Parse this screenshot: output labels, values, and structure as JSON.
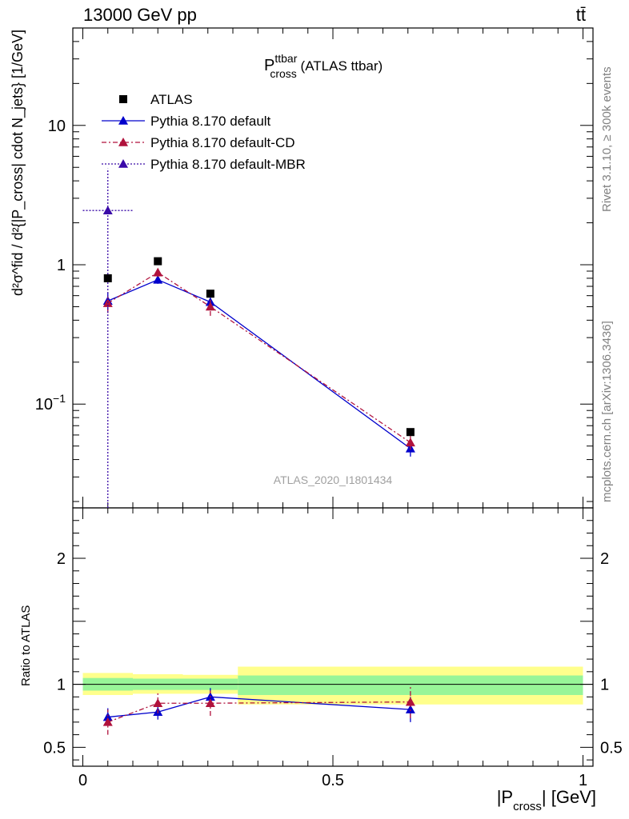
{
  "header": {
    "left": "13000 GeV pp",
    "right": "tt̄"
  },
  "title": {
    "main": "P",
    "sup": "ttbar",
    "sub": "cross",
    "rest": " (ATLAS ttbar)"
  },
  "side": {
    "rivet": "Rivet 3.1.10, ≥ 300k events",
    "mcplots": "mcplots.cern.ch [arXiv:1306.3436]"
  },
  "watermark": "ATLAS_2020_I1801434",
  "ylabel_main": "d²σ^fid / d²{|P_cross| cdot N_jets}  [1/GeV]",
  "ylabel_ratio": "Ratio to ATLAS",
  "xlabel": {
    "pre": "|P",
    "sub": "cross",
    "post": "| [GeV]"
  },
  "legend": [
    {
      "label": "ATLAS",
      "color": "#000000",
      "marker": "square",
      "line": "none"
    },
    {
      "label": "Pythia 8.170 default",
      "color": "#0000cc",
      "marker": "triangle",
      "line": "solid"
    },
    {
      "label": "Pythia 8.170 default-CD",
      "color": "#b0123c",
      "marker": "triangle",
      "line": "dashdot"
    },
    {
      "label": "Pythia 8.170 default-MBR",
      "color": "#3a0aa8",
      "marker": "triangle",
      "line": "dotted"
    }
  ],
  "chart_data": {
    "type": "scatter",
    "x_range": [
      -0.02,
      1.02
    ],
    "y_log": true,
    "y_range": [
      0.018,
      50
    ],
    "ratio_range": [
      0.35,
      2.4
    ],
    "x_ticks": [
      {
        "v": 0,
        "label": "0"
      },
      {
        "v": 0.5,
        "label": "0.5"
      },
      {
        "v": 1,
        "label": "1"
      }
    ],
    "y_ticks": [
      {
        "v": 0.1,
        "label": "10^-1"
      },
      {
        "v": 1,
        "label": "1"
      },
      {
        "v": 10,
        "label": "10"
      }
    ],
    "ratio_ticks": [
      {
        "v": 0.5,
        "label": "0.5"
      },
      {
        "v": 1,
        "label": "1"
      },
      {
        "v": 2,
        "label": "2"
      }
    ],
    "bins": [
      {
        "lo": 0.0,
        "hi": 0.1,
        "x": 0.05
      },
      {
        "lo": 0.1,
        "hi": 0.2,
        "x": 0.15
      },
      {
        "lo": 0.2,
        "hi": 0.31,
        "x": 0.255
      },
      {
        "lo": 0.31,
        "hi": 1.0,
        "x": 0.655
      }
    ],
    "data": {
      "name": "ATLAS",
      "y": [
        0.8,
        1.06,
        0.62,
        0.063
      ]
    },
    "band_yellow": [
      [
        0.915,
        1.09
      ],
      [
        0.925,
        1.08
      ],
      [
        0.925,
        1.075
      ],
      [
        0.84,
        1.14
      ]
    ],
    "band_green": [
      [
        0.95,
        1.05
      ],
      [
        0.955,
        1.045
      ],
      [
        0.955,
        1.045
      ],
      [
        0.915,
        1.07
      ]
    ],
    "series": [
      {
        "name": "Pythia 8.170 default",
        "color": "#0000cc",
        "dash": "",
        "y": [
          0.55,
          0.78,
          0.54,
          0.048
        ],
        "yerr": [
          0.08,
          0.05,
          0.04,
          0.006
        ],
        "ratio": [
          0.74,
          0.78,
          0.9,
          0.8
        ],
        "rerr": [
          0.07,
          0.06,
          0.07,
          0.1
        ]
      },
      {
        "name": "Pythia 8.170 default-CD",
        "color": "#b0123c",
        "dash": "6,3,2,3",
        "y": [
          0.53,
          0.88,
          0.5,
          0.053
        ],
        "yerr": [
          0.08,
          0.06,
          0.07,
          0.006
        ],
        "ratio": [
          0.7,
          0.85,
          0.85,
          0.86
        ],
        "rerr": [
          0.1,
          0.08,
          0.1,
          0.13
        ]
      },
      {
        "name": "Pythia 8.170 default-MBR",
        "color": "#3a0aa8",
        "dash": "2,2",
        "y": [
          2.45,
          null,
          null,
          null
        ],
        "yerr": [
          2.45,
          0,
          0,
          0
        ],
        "ratio": [
          null,
          null,
          null,
          null
        ],
        "rerr": [
          0,
          0,
          0,
          0
        ]
      }
    ]
  }
}
